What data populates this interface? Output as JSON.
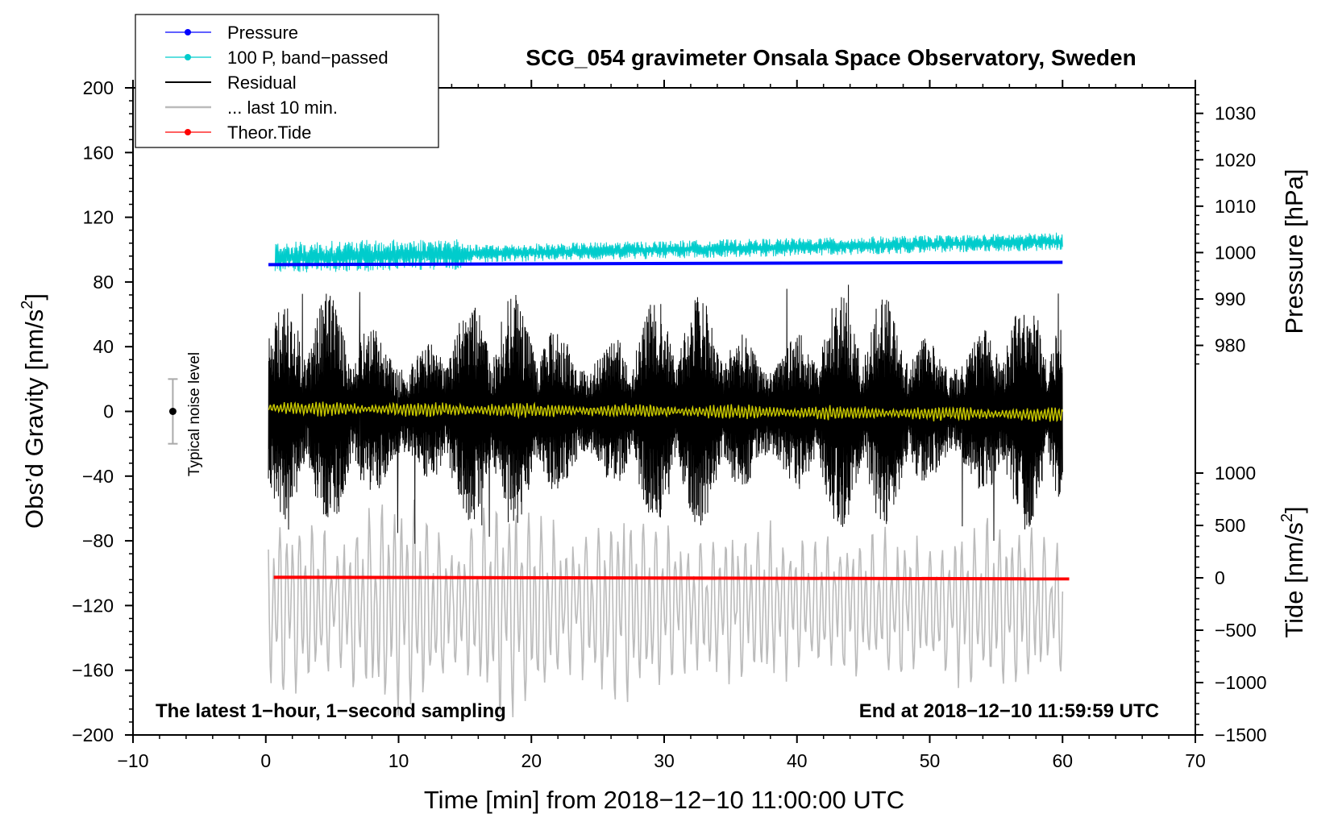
{
  "chart_data": {
    "type": "line",
    "title": "SCG_054 gravimeter Onsala Space Observatory, Sweden",
    "xlabel": "Time [min] from 2018−12−10 11:00:00 UTC",
    "ylabel_left": "Obs’d Gravity [nm/s",
    "ylabel_left_sup": "2",
    "ylabel_left_close": "]",
    "ylabel_right_pressure": "Pressure [hPa]",
    "ylabel_right_tide": "Tide [nm/s",
    "ylabel_right_tide_sup": "2",
    "ylabel_right_tide_close": "]",
    "xlim": [
      -10,
      70
    ],
    "ylim": [
      -200,
      200
    ],
    "pressure_axis_range": [
      973.5,
      1035.5
    ],
    "tide_axis_range": [
      -1500,
      1500
    ],
    "x_ticks": [
      "−10",
      "0",
      "10",
      "20",
      "30",
      "40",
      "50",
      "60",
      "70"
    ],
    "x_tick_values": [
      -10,
      0,
      10,
      20,
      30,
      40,
      50,
      60,
      70
    ],
    "y_ticks": [
      "200",
      "160",
      "120",
      "80",
      "40",
      "0",
      "−40",
      "−80",
      "−120",
      "−160",
      "−200"
    ],
    "y_tick_values": [
      200,
      160,
      120,
      80,
      40,
      0,
      -40,
      -80,
      -120,
      -160,
      -200
    ],
    "pressure_ticks": [
      "1030",
      "1020",
      "1010",
      "1000",
      "990",
      "980"
    ],
    "pressure_tick_values": [
      1030,
      1020,
      1010,
      1000,
      990,
      980
    ],
    "tide_ticks": [
      "1000",
      "500",
      "0",
      "−500",
      "−1000",
      "−1500"
    ],
    "tide_tick_values": [
      1000,
      500,
      0,
      -500,
      -1000,
      -1500
    ],
    "legend": [
      {
        "label": "Pressure",
        "color": "#0000ff",
        "marker": true
      },
      {
        "label": "100 P, band−passed",
        "color": "#00cccc",
        "marker": true
      },
      {
        "label": "Residual",
        "color": "#000000",
        "marker": false
      },
      {
        "label": "... last 10 min.",
        "color": "#bbbbbb",
        "marker": false
      },
      {
        "label": "Theor.Tide",
        "color": "#ff0000",
        "marker": true
      }
    ],
    "legend_position": "top-left",
    "noise_label": "Typical noise level",
    "noise_bar": {
      "x": -7,
      "center": 0,
      "low": -20,
      "high": 20
    },
    "annotation_left": "The latest 1−hour, 1−second sampling",
    "annotation_right": "End at 2018−12−10 11:59:59 UTC",
    "series": [
      {
        "name": "Pressure",
        "axis": "pressure",
        "color": "#0000ff",
        "x": [
          0.2,
          60
        ],
        "values": [
          997.4,
          997.9
        ]
      },
      {
        "name": "100 P, band-passed",
        "axis": "gravity",
        "color": "#00cccc",
        "x": [
          0.7,
          60
        ],
        "values": [
          95,
          105
        ],
        "amplitude": 7
      },
      {
        "name": "Residual",
        "axis": "gravity",
        "color": "#000000",
        "x": [
          0.2,
          60
        ],
        "values": [
          0,
          0
        ],
        "amplitude": 75
      },
      {
        "name": "Residual smoothed",
        "axis": "gravity",
        "color": "#c8c800",
        "x": [
          0.2,
          60
        ],
        "values": [
          2,
          -2
        ],
        "amplitude": 5
      },
      {
        "name": "... last 10 min.",
        "axis": "gravity",
        "color": "#bbbbbb",
        "x": [
          0.2,
          60
        ],
        "values": [
          -120,
          -120
        ],
        "amplitude": 60
      },
      {
        "name": "Theor.Tide",
        "axis": "tide",
        "color": "#ff0000",
        "x": [
          0.6,
          60.5
        ],
        "values": [
          5,
          -10
        ]
      }
    ]
  }
}
